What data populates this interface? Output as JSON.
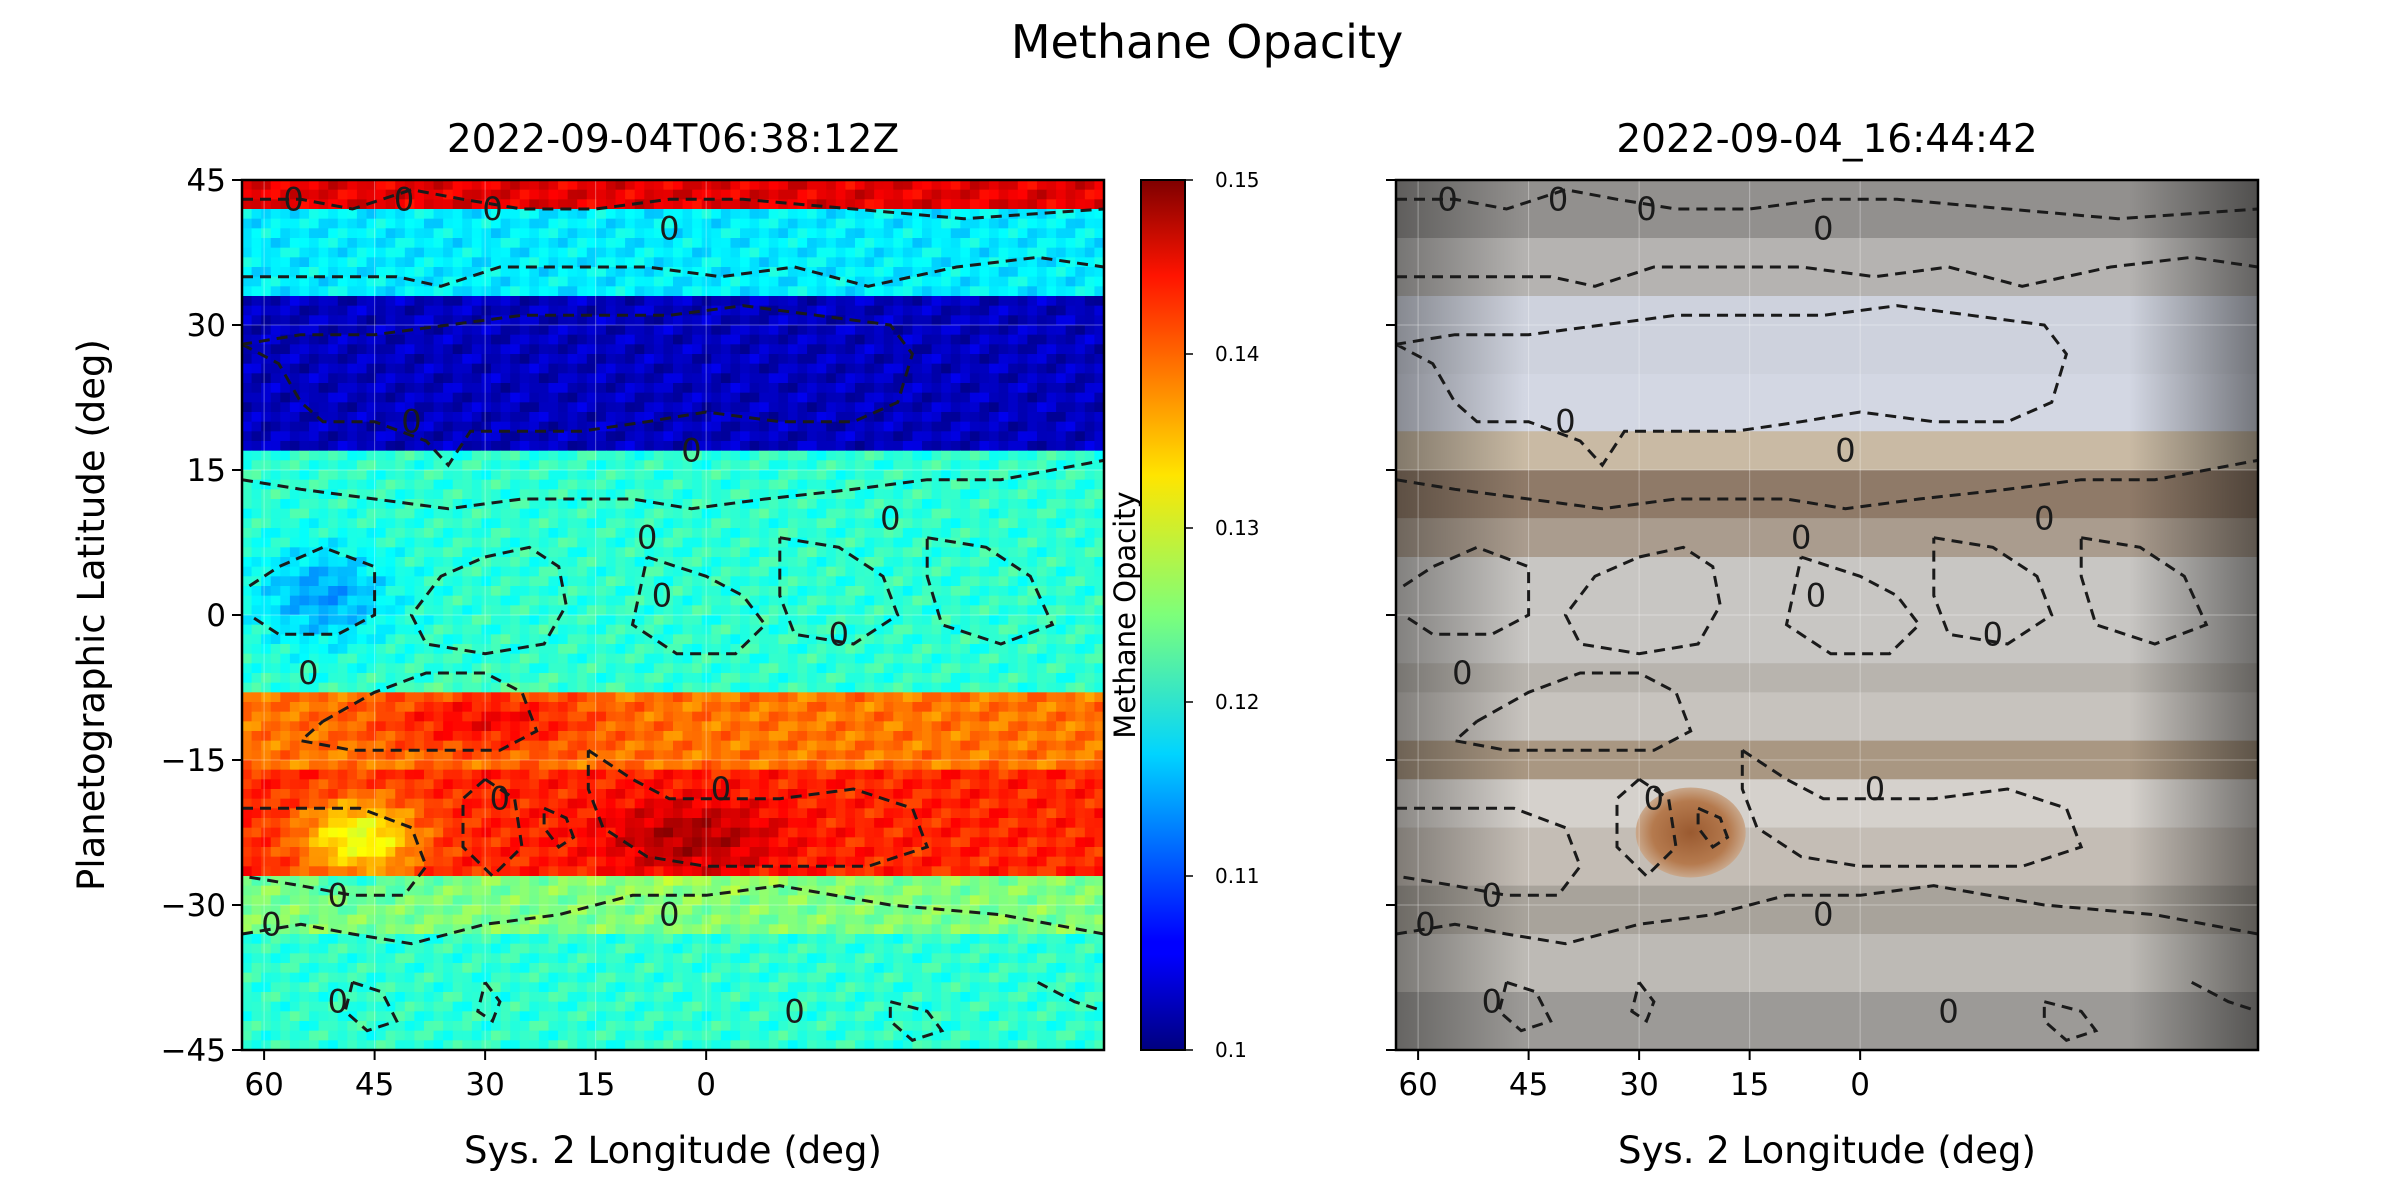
{
  "suptitle": "Methane Opacity",
  "chart_data": [
    {
      "type": "heatmap",
      "title": "2022-09-04T06:38:12Z",
      "xlabel": "Sys. 2 Longitude (deg)",
      "ylabel": "Planetographic Latitude (deg)",
      "xlim": [
        63,
        -54
      ],
      "ylim": [
        -45,
        45
      ],
      "xticks": [
        60,
        45,
        30,
        15,
        0
      ],
      "yticks": [
        45,
        30,
        15,
        0,
        -15,
        -30,
        -45
      ],
      "x_tick_labels": [
        "60",
        "45",
        "30",
        "15",
        "0"
      ],
      "y_tick_labels": [
        "45",
        "30",
        "15",
        "0",
        "−15",
        "−30",
        "−45"
      ],
      "colormap": "jet",
      "colorbar": {
        "label": "Methane Opacity",
        "range": [
          0.1,
          0.15
        ],
        "ticks": [
          "0.15",
          "0.14",
          "0.13",
          "0.12",
          "0.11",
          "0.1"
        ]
      },
      "bands": [
        {
          "lat": [
            42,
            45
          ],
          "value": 0.145
        },
        {
          "lat": [
            33,
            42
          ],
          "value": 0.118
        },
        {
          "lat": [
            17,
            33
          ],
          "value": 0.103
        },
        {
          "lat": [
            -8,
            15
          ],
          "value": 0.121
        },
        {
          "lat": [
            -16,
            -8
          ],
          "value": 0.138
        },
        {
          "lat": [
            -27,
            -16
          ],
          "value": 0.142
        },
        {
          "lat": [
            -33,
            -27
          ],
          "value": 0.125
        },
        {
          "lat": [
            -45,
            -33
          ],
          "value": 0.121
        }
      ],
      "contour_level": 0,
      "contour_labels": [
        "0",
        "0",
        "0",
        "0",
        "0",
        "0",
        "0",
        "0",
        "0",
        "0",
        "0",
        "0",
        "0",
        "0",
        "0",
        "0",
        "0",
        "0"
      ],
      "grid": true
    },
    {
      "type": "heatmap",
      "title": "2022-09-04_16:44:42",
      "xlabel": "Sys. 2 Longitude (deg)",
      "xlim": [
        63,
        -54
      ],
      "ylim": [
        -45,
        45
      ],
      "xticks": [
        60,
        45,
        30,
        15,
        0
      ],
      "x_tick_labels": [
        "60",
        "45",
        "30",
        "15",
        "0"
      ],
      "image": "Jupiter visible-light map with Great Red Spot near 23 deg longitude, -22 deg latitude",
      "contour_level": 0,
      "contour_labels": [
        "0",
        "0",
        "0",
        "0",
        "0",
        "0",
        "0",
        "0",
        "0",
        "0",
        "0",
        "0",
        "0",
        "0",
        "0",
        "0",
        "0",
        "0"
      ],
      "grid": true
    }
  ],
  "colors": {
    "jet_low": "#00007f",
    "jet_mid": "#7dff7a",
    "jet_high": "#7f0000",
    "contour": "#1a1a1a",
    "grs": "#a86a3c"
  }
}
